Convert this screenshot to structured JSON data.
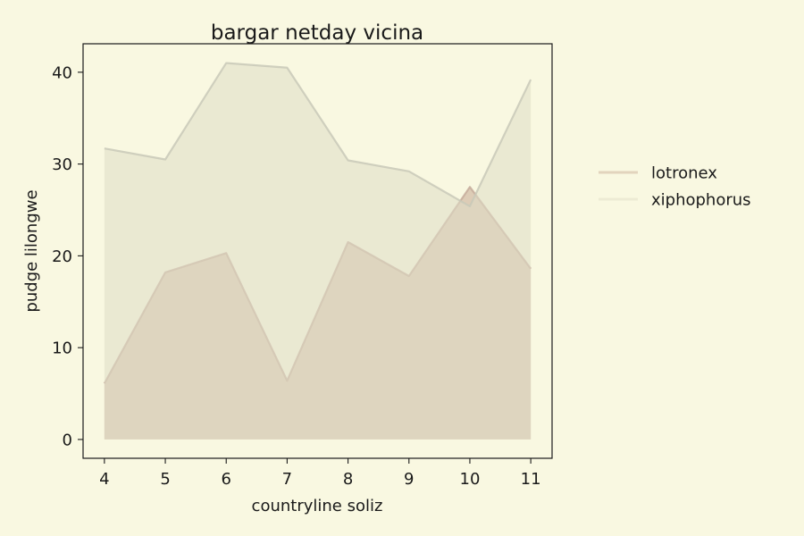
{
  "chart_data": {
    "type": "area",
    "title": "bargar netday vicina",
    "xlabel": "countryline soliz",
    "ylabel": "pudge lilongwe",
    "x": [
      4,
      5,
      6,
      7,
      8,
      9,
      10,
      11
    ],
    "xlim": [
      3.65,
      11.35
    ],
    "ylim": [
      -2.05,
      43.1
    ],
    "xticks": [
      4,
      5,
      6,
      7,
      8,
      9,
      10,
      11
    ],
    "yticks": [
      0,
      10,
      20,
      30,
      40
    ],
    "legend_position": "right",
    "grid": false,
    "series": [
      {
        "name": "lotronex",
        "values": [
          6.1,
          18.2,
          20.3,
          6.4,
          21.5,
          17.8,
          27.5,
          18.6
        ],
        "fill": "#c6a893",
        "line": "#c6ab9b"
      },
      {
        "name": "xiphophorus",
        "values": [
          31.7,
          30.5,
          41.0,
          40.5,
          30.4,
          29.2,
          25.4,
          39.2
        ],
        "fill": "#dedcc6",
        "line": "#c9c9b8"
      }
    ],
    "colors": {
      "background": "#f9f8e1",
      "axes": "#1a1a1a"
    }
  }
}
